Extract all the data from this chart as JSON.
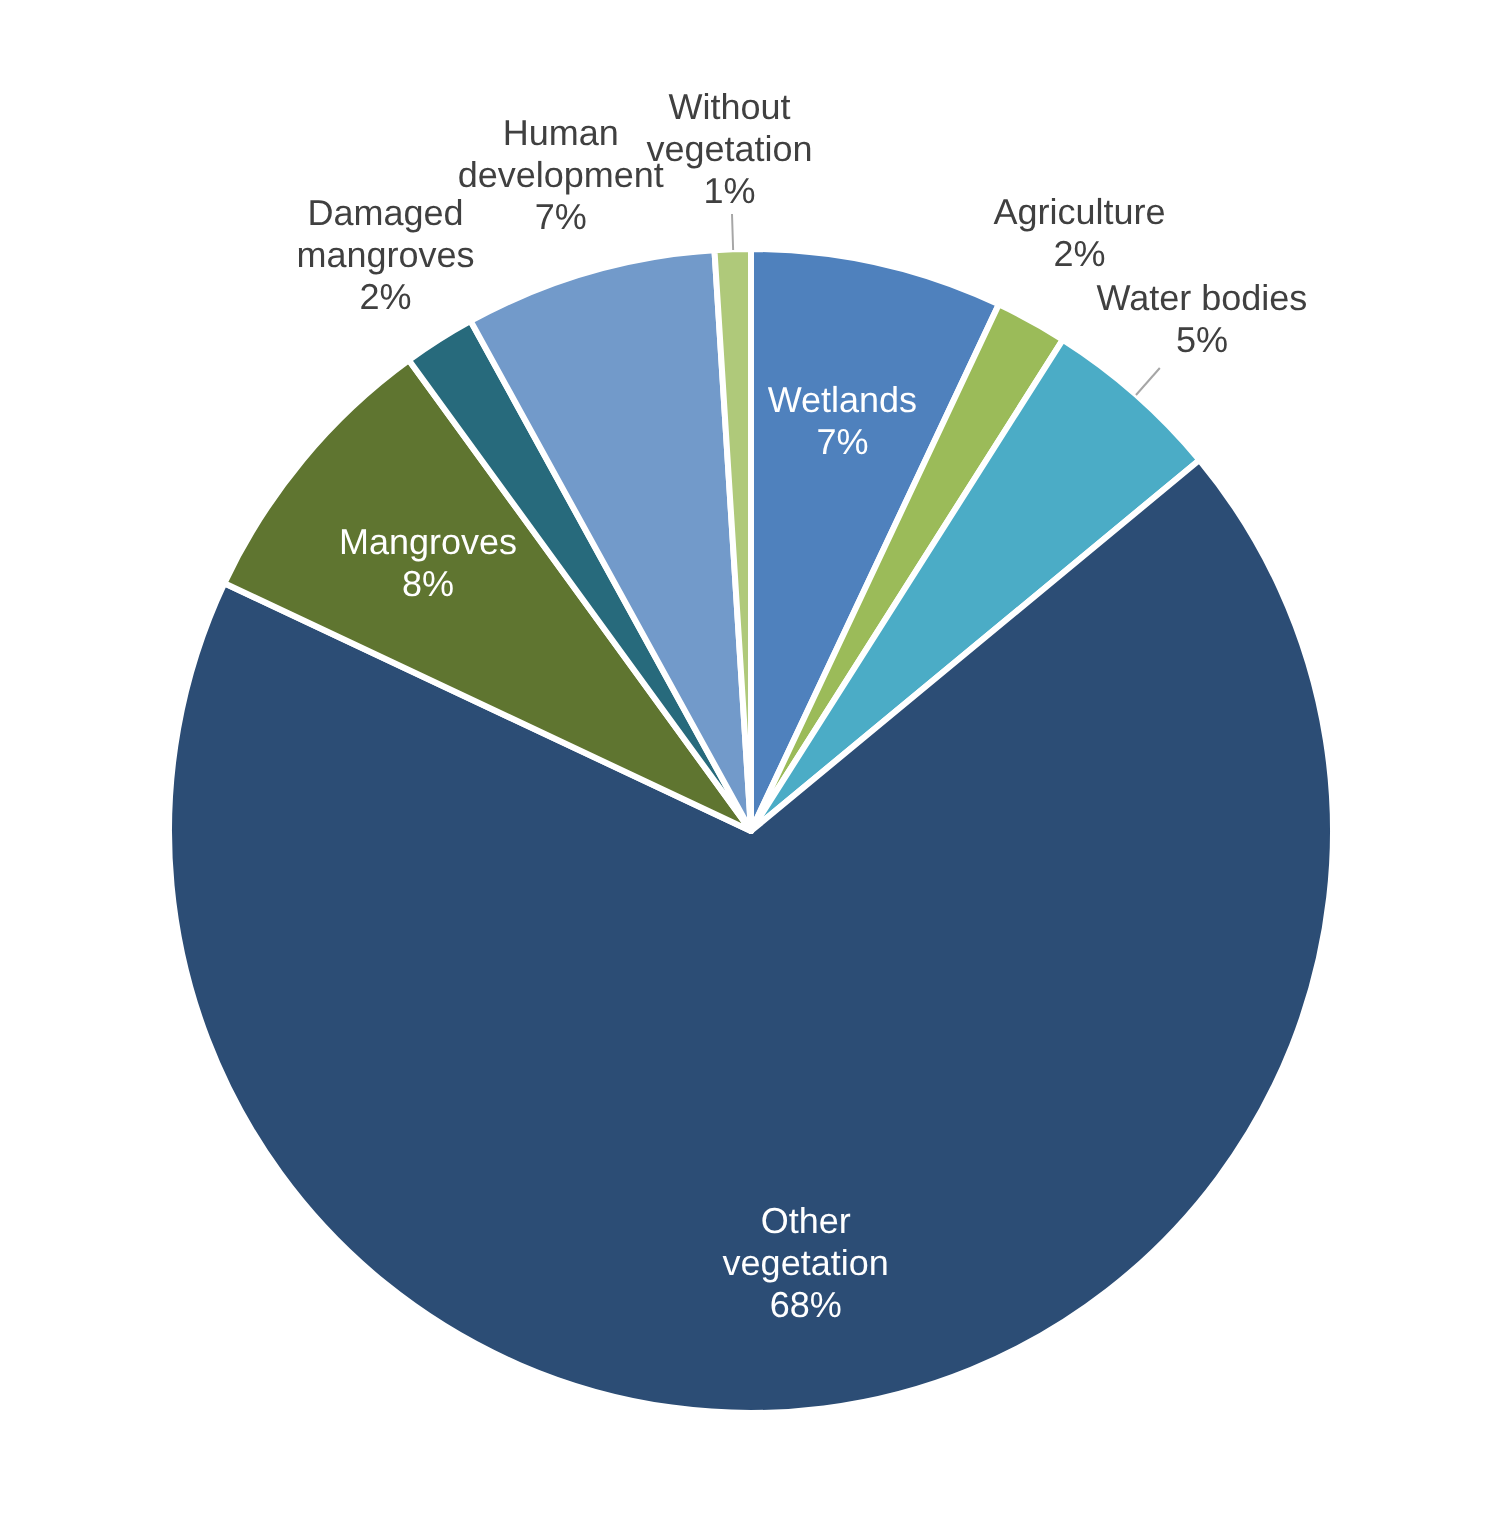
{
  "chart_data": {
    "type": "pie",
    "categories": [
      "Wetlands",
      "Agriculture",
      "Water bodies",
      "Other vegetation",
      "Mangroves",
      "Damaged mangroves",
      "Human development",
      "Without vegetation"
    ],
    "values": [
      7,
      2,
      5,
      68,
      8,
      2,
      7,
      1
    ],
    "value_labels": [
      "7%",
      "2%",
      "5%",
      "68%",
      "8%",
      "2%",
      "7%",
      "1%"
    ],
    "colors": [
      "#4f81bd",
      "#9bbb59",
      "#4bacc6",
      "#2c4d75",
      "#5f7530",
      "#276a7c",
      "#729aca",
      "#afc97a"
    ],
    "legend": false
  }
}
